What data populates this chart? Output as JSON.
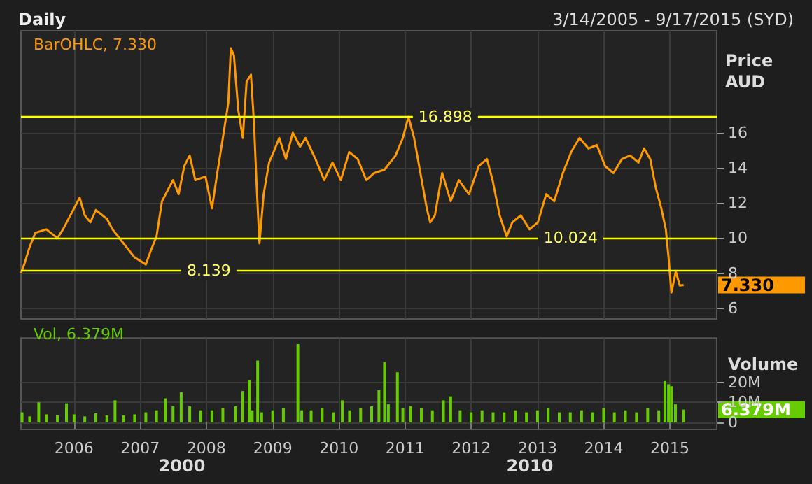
{
  "chart_data": [
    {
      "type": "line",
      "title": "Daily",
      "subtitle": "3/14/2005 - 9/17/2015 (SYD)",
      "ylabel": "Price AUD",
      "x": [
        "2005-03-14",
        "2005-04",
        "2005-05",
        "2005-06",
        "2005-08",
        "2005-10",
        "2005-11",
        "2006-01",
        "2006-02",
        "2006-03",
        "2006-04",
        "2006-05",
        "2006-07",
        "2006-08",
        "2006-10",
        "2006-12",
        "2007-02",
        "2007-03",
        "2007-04",
        "2007-05",
        "2007-07",
        "2007-08",
        "2007-09",
        "2007-10",
        "2007-11",
        "2007-12-27",
        "2008-02",
        "2008-03",
        "2008-04",
        "2008-05",
        "2008-05-15",
        "2008-06",
        "2008-06-25",
        "2008-07-20",
        "2008-08-10",
        "2008-09-03",
        "2008-09-20",
        "2008-10-03",
        "2008-10-20",
        "2008-11-12",
        "2008-12-12",
        "2009-01-06",
        "2009-02-06",
        "2009-03-15",
        "2009-04-22",
        "2009-06",
        "2009-07",
        "2009-08-25",
        "2009-10-12",
        "2009-11-27",
        "2010-01-12",
        "2010-02-27",
        "2010-04-15",
        "2010-06",
        "2010-07-15",
        "2010-09-10",
        "2010-11-10",
        "2010-12-20",
        "2011-01-20",
        "2011-02-20",
        "2011-03-20",
        "2011-05",
        "2011-05-20",
        "2011-06-15",
        "2011-07-25",
        "2011-09-10",
        "2011-10-25",
        "2011-12-20",
        "2012-02-12",
        "2012-03-28",
        "2012-04-28",
        "2012-06-06",
        "2012-07-15",
        "2012-08-15",
        "2012-10",
        "2012-11-18",
        "2013-01-03",
        "2013-02-18",
        "2013-04-03",
        "2013-05-21",
        "2013-07-06",
        "2013-08-21",
        "2013-10-09",
        "2013-11-24",
        "2014-01-09",
        "2014-02-24",
        "2014-04-12",
        "2014-05-27",
        "2014-07-12",
        "2014-08-12",
        "2014-09-15",
        "2014-10-15",
        "2014-11-15",
        "2014-12-10",
        "2014-12-25",
        "2015-01-10",
        "2015-02-03",
        "2015-02-25",
        "2015-03-18"
      ],
      "series": [
        {
          "name": "BarOHLC, 7.330",
          "color": "#ff9900",
          "values": [
            8.0,
            8.5,
            9.5,
            10.3,
            10.5,
            10.0,
            10.5,
            11.7,
            12.3,
            11.3,
            10.9,
            11.6,
            11.1,
            10.5,
            9.7,
            8.9,
            8.5,
            9.3,
            10.1,
            12.1,
            13.3,
            12.5,
            14.1,
            14.7,
            13.3,
            13.5,
            11.7,
            13.7,
            15.7,
            17.7,
            20.8,
            20.4,
            17.3,
            15.7,
            18.9,
            19.3,
            16.5,
            13.3,
            9.7,
            12.5,
            14.3,
            14.9,
            15.7,
            14.5,
            16.0,
            15.2,
            15.7,
            14.5,
            13.3,
            14.3,
            13.3,
            14.9,
            14.5,
            13.3,
            13.7,
            13.9,
            14.7,
            15.7,
            16.9,
            15.7,
            14.1,
            11.7,
            10.9,
            11.3,
            13.7,
            12.1,
            13.3,
            12.5,
            14.1,
            14.5,
            13.3,
            11.3,
            10.1,
            10.9,
            11.3,
            10.5,
            10.9,
            12.5,
            12.1,
            13.7,
            14.9,
            15.7,
            15.1,
            15.3,
            14.1,
            13.7,
            14.5,
            14.7,
            14.3,
            15.1,
            14.5,
            12.9,
            11.7,
            10.5,
            8.9,
            6.9,
            8.1,
            7.3,
            7.33
          ]
        }
      ],
      "xlim": [
        "2005-03-14",
        "2015-09-17"
      ],
      "xticks": [
        "2006",
        "2007",
        "2008",
        "2009",
        "2010",
        "2011",
        "2012",
        "2013",
        "2014",
        "2015"
      ],
      "ylim": [
        5.4,
        21.8
      ],
      "yticks": [
        6,
        8,
        10,
        12,
        14,
        16
      ],
      "ref_lines": [
        {
          "axis": "y",
          "value": 16.898,
          "label": "16.898",
          "color": "#ffff00"
        },
        {
          "axis": "y",
          "value": 10.024,
          "label": "10.024",
          "color": "#ffff00"
        },
        {
          "axis": "y",
          "value": 8.139,
          "label": "8.139",
          "color": "#ffff00"
        }
      ],
      "annotations": [
        "7.330"
      ],
      "grid": true,
      "legend": "top left",
      "tick_labels": "y"
    },
    {
      "type": "bar",
      "ylabel": "Volume",
      "x": [
        "2005-03-20",
        "2005-05",
        "2005-06-20",
        "2005-08",
        "2005-10",
        "2005-11-20",
        "2006-01",
        "2006-03",
        "2006-05",
        "2006-07",
        "2006-08-15",
        "2006-10",
        "2006-12",
        "2007-02",
        "2007-04",
        "2007-05-20",
        "2007-07",
        "2007-08-15",
        "2007-10",
        "2007-12",
        "2008-02",
        "2008-04",
        "2008-06-10",
        "2008-07-20",
        "2008-08-25",
        "2008-09-10",
        "2008-10-10",
        "2008-11",
        "2009-01",
        "2009-03",
        "2009-05-20",
        "2009-06-10",
        "2009-08",
        "2009-10",
        "2009-12",
        "2010-01-20",
        "2010-03",
        "2010-05",
        "2010-07",
        "2010-08-10",
        "2010-09-10",
        "2010-10",
        "2010-11-20",
        "2010-12-20",
        "2011-02",
        "2011-04",
        "2011-06",
        "2011-08",
        "2011-09-10",
        "2011-11",
        "2012-01",
        "2012-03",
        "2012-05",
        "2012-07",
        "2012-09",
        "2012-11",
        "2013-01",
        "2013-03",
        "2013-05",
        "2013-07",
        "2013-09",
        "2013-11",
        "2014-01",
        "2014-03",
        "2014-05",
        "2014-07",
        "2014-09",
        "2014-11",
        "2014-12-05",
        "2014-12-25",
        "2015-01-10",
        "2015-02-01",
        "2015-03-18"
      ],
      "series": [
        {
          "name": "Vol, 6.379M",
          "color": "#66cc00",
          "values": [
            5,
            3,
            10,
            4,
            3.5,
            9.5,
            4,
            3,
            4.5,
            3.5,
            11,
            3.5,
            4,
            5,
            6,
            12,
            8,
            15,
            8,
            6,
            6,
            7,
            8,
            15.6,
            21,
            6,
            30.8,
            5,
            6,
            7,
            39,
            6,
            6,
            7,
            5,
            11,
            6,
            7,
            8,
            16,
            30,
            9,
            25,
            7,
            8,
            7,
            6,
            11,
            13,
            6,
            5,
            6,
            5,
            5,
            6,
            5,
            6,
            7,
            5,
            5,
            6,
            5,
            7,
            5,
            6,
            5,
            7,
            6,
            20.6,
            19,
            18,
            9,
            6.379
          ]
        }
      ],
      "xlim": [
        "2005-03-14",
        "2015-09-17"
      ],
      "xticks": [
        "2006",
        "2007",
        "2008",
        "2009",
        "2010",
        "2011",
        "2012",
        "2013",
        "2014",
        "2015"
      ],
      "ylim": [
        -3.5,
        42
      ],
      "yticks": [
        0,
        {
          "value": 10,
          "label": "10M"
        },
        {
          "value": 20,
          "label": "20M"
        }
      ],
      "annotations": [
        "6.379M",
        "2000",
        "2010"
      ],
      "grid": true,
      "legend": "top left"
    }
  ]
}
